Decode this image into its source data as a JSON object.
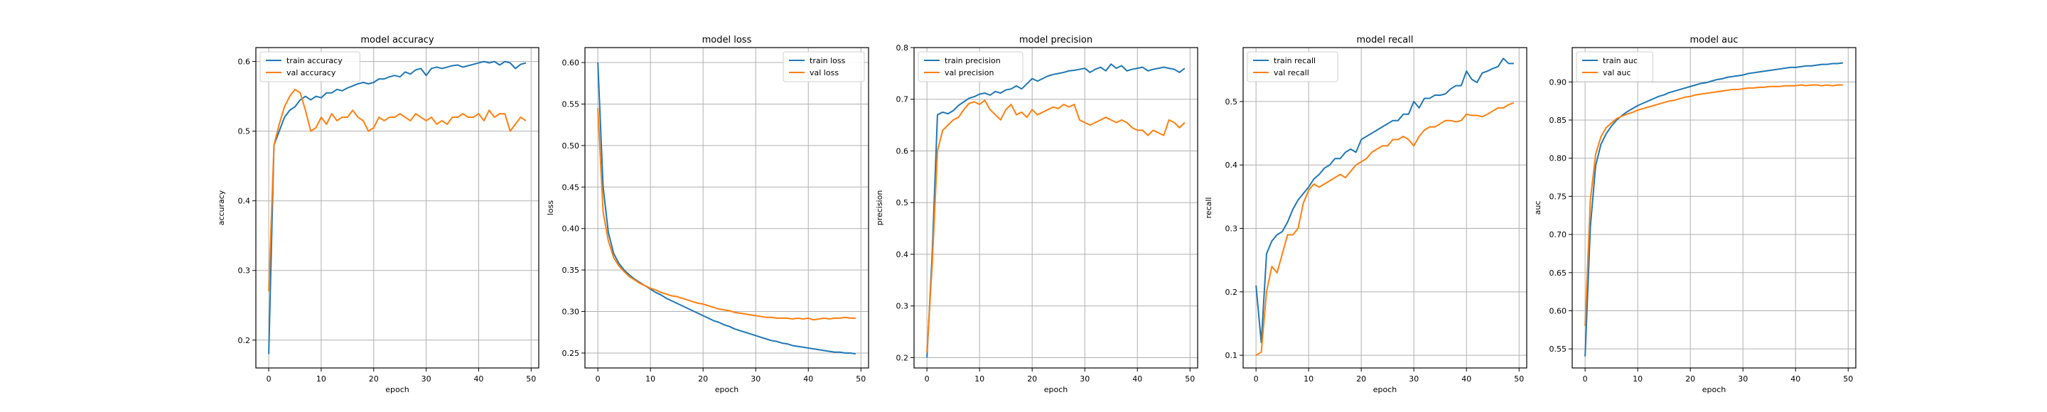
{
  "colors": {
    "train": "#1f77b4",
    "val": "#ff7f0e",
    "grid": "#b0b0b0"
  },
  "chart_data": [
    {
      "type": "line",
      "title": "model accuracy",
      "xlabel": "epoch",
      "ylabel": "accuracy",
      "xlim": [
        -2.45,
        51.45
      ],
      "ylim": [
        0.16,
        0.62
      ],
      "xticks": [
        0,
        10,
        20,
        30,
        40,
        50
      ],
      "yticks": [
        0.2,
        0.3,
        0.4,
        0.5,
        0.6
      ],
      "ytick_labels": [
        "0.2",
        "0.3",
        "0.4",
        "0.5",
        "0.6"
      ],
      "legend": "upper left",
      "grid": true,
      "x": [
        0,
        1,
        2,
        3,
        4,
        5,
        6,
        7,
        8,
        9,
        10,
        11,
        12,
        13,
        14,
        15,
        16,
        17,
        18,
        19,
        20,
        21,
        22,
        23,
        24,
        25,
        26,
        27,
        28,
        29,
        30,
        31,
        32,
        33,
        34,
        35,
        36,
        37,
        38,
        39,
        40,
        41,
        42,
        43,
        44,
        45,
        46,
        47,
        48,
        49
      ],
      "series": [
        {
          "name": "train accuracy",
          "color": "#1f77b4",
          "values": [
            0.18,
            0.48,
            0.5,
            0.52,
            0.53,
            0.535,
            0.545,
            0.55,
            0.545,
            0.55,
            0.548,
            0.555,
            0.555,
            0.56,
            0.558,
            0.562,
            0.565,
            0.568,
            0.57,
            0.568,
            0.57,
            0.575,
            0.575,
            0.578,
            0.58,
            0.578,
            0.585,
            0.582,
            0.588,
            0.59,
            0.58,
            0.59,
            0.592,
            0.59,
            0.592,
            0.594,
            0.595,
            0.592,
            0.594,
            0.596,
            0.598,
            0.6,
            0.598,
            0.6,
            0.595,
            0.6,
            0.598,
            0.59,
            0.596,
            0.598
          ]
        },
        {
          "name": "val accuracy",
          "color": "#ff7f0e",
          "values": [
            0.27,
            0.48,
            0.51,
            0.535,
            0.55,
            0.56,
            0.555,
            0.53,
            0.5,
            0.505,
            0.52,
            0.51,
            0.525,
            0.515,
            0.52,
            0.52,
            0.53,
            0.52,
            0.515,
            0.5,
            0.505,
            0.52,
            0.515,
            0.52,
            0.52,
            0.525,
            0.52,
            0.515,
            0.525,
            0.52,
            0.515,
            0.52,
            0.51,
            0.515,
            0.51,
            0.52,
            0.52,
            0.525,
            0.52,
            0.52,
            0.525,
            0.515,
            0.53,
            0.52,
            0.525,
            0.525,
            0.5,
            0.51,
            0.52,
            0.515
          ]
        }
      ]
    },
    {
      "type": "line",
      "title": "model loss",
      "xlabel": "epoch",
      "ylabel": "loss",
      "xlim": [
        -2.45,
        51.45
      ],
      "ylim": [
        0.232,
        0.618
      ],
      "xticks": [
        0,
        10,
        20,
        30,
        40,
        50
      ],
      "yticks": [
        0.25,
        0.3,
        0.35,
        0.4,
        0.45,
        0.5,
        0.55,
        0.6
      ],
      "ytick_labels": [
        "0.25",
        "0.30",
        "0.35",
        "0.40",
        "0.45",
        "0.50",
        "0.55",
        "0.60"
      ],
      "legend": "upper right",
      "grid": true,
      "x": [
        0,
        1,
        2,
        3,
        4,
        5,
        6,
        7,
        8,
        9,
        10,
        11,
        12,
        13,
        14,
        15,
        16,
        17,
        18,
        19,
        20,
        21,
        22,
        23,
        24,
        25,
        26,
        27,
        28,
        29,
        30,
        31,
        32,
        33,
        34,
        35,
        36,
        37,
        38,
        39,
        40,
        41,
        42,
        43,
        44,
        45,
        46,
        47,
        48,
        49
      ],
      "series": [
        {
          "name": "train loss",
          "color": "#1f77b4",
          "values": [
            0.6,
            0.45,
            0.395,
            0.37,
            0.358,
            0.35,
            0.344,
            0.339,
            0.335,
            0.331,
            0.327,
            0.323,
            0.32,
            0.316,
            0.313,
            0.31,
            0.307,
            0.304,
            0.301,
            0.298,
            0.295,
            0.292,
            0.289,
            0.287,
            0.284,
            0.282,
            0.279,
            0.277,
            0.275,
            0.273,
            0.271,
            0.269,
            0.267,
            0.265,
            0.264,
            0.262,
            0.261,
            0.259,
            0.258,
            0.257,
            0.256,
            0.255,
            0.254,
            0.253,
            0.252,
            0.251,
            0.251,
            0.25,
            0.25,
            0.249
          ]
        },
        {
          "name": "val loss",
          "color": "#ff7f0e",
          "values": [
            0.545,
            0.42,
            0.385,
            0.365,
            0.355,
            0.348,
            0.342,
            0.338,
            0.334,
            0.331,
            0.328,
            0.326,
            0.323,
            0.321,
            0.319,
            0.318,
            0.316,
            0.314,
            0.312,
            0.31,
            0.309,
            0.307,
            0.305,
            0.303,
            0.302,
            0.301,
            0.299,
            0.298,
            0.297,
            0.296,
            0.295,
            0.294,
            0.293,
            0.293,
            0.292,
            0.292,
            0.292,
            0.291,
            0.292,
            0.291,
            0.292,
            0.29,
            0.291,
            0.292,
            0.291,
            0.292,
            0.292,
            0.293,
            0.292,
            0.292
          ]
        }
      ]
    },
    {
      "type": "line",
      "title": "model precision",
      "xlabel": "epoch",
      "ylabel": "precision",
      "xlim": [
        -2.45,
        51.45
      ],
      "ylim": [
        0.18,
        0.8
      ],
      "xticks": [
        0,
        10,
        20,
        30,
        40,
        50
      ],
      "yticks": [
        0.2,
        0.3,
        0.4,
        0.5,
        0.6,
        0.7,
        0.8
      ],
      "ytick_labels": [
        "0.2",
        "0.3",
        "0.4",
        "0.5",
        "0.6",
        "0.7",
        "0.8"
      ],
      "legend": "upper left",
      "grid": true,
      "x": [
        0,
        1,
        2,
        3,
        4,
        5,
        6,
        7,
        8,
        9,
        10,
        11,
        12,
        13,
        14,
        15,
        16,
        17,
        18,
        19,
        20,
        21,
        22,
        23,
        24,
        25,
        26,
        27,
        28,
        29,
        30,
        31,
        32,
        33,
        34,
        35,
        36,
        37,
        38,
        39,
        40,
        41,
        42,
        43,
        44,
        45,
        46,
        47,
        48,
        49
      ],
      "series": [
        {
          "name": "train precision",
          "color": "#1f77b4",
          "values": [
            0.2,
            0.4,
            0.67,
            0.675,
            0.672,
            0.678,
            0.688,
            0.695,
            0.702,
            0.705,
            0.71,
            0.712,
            0.708,
            0.715,
            0.712,
            0.718,
            0.72,
            0.726,
            0.72,
            0.73,
            0.74,
            0.735,
            0.74,
            0.745,
            0.748,
            0.75,
            0.752,
            0.755,
            0.756,
            0.758,
            0.76,
            0.752,
            0.758,
            0.762,
            0.755,
            0.768,
            0.76,
            0.765,
            0.755,
            0.758,
            0.76,
            0.762,
            0.755,
            0.758,
            0.76,
            0.762,
            0.76,
            0.758,
            0.752,
            0.76
          ]
        },
        {
          "name": "val precision",
          "color": "#ff7f0e",
          "values": [
            0.21,
            0.38,
            0.6,
            0.64,
            0.65,
            0.66,
            0.665,
            0.68,
            0.692,
            0.695,
            0.69,
            0.698,
            0.68,
            0.67,
            0.66,
            0.68,
            0.69,
            0.67,
            0.675,
            0.665,
            0.68,
            0.67,
            0.675,
            0.68,
            0.685,
            0.682,
            0.69,
            0.685,
            0.69,
            0.66,
            0.655,
            0.65,
            0.655,
            0.66,
            0.665,
            0.66,
            0.655,
            0.66,
            0.655,
            0.645,
            0.64,
            0.64,
            0.63,
            0.64,
            0.635,
            0.63,
            0.66,
            0.655,
            0.645,
            0.655
          ]
        }
      ]
    },
    {
      "type": "line",
      "title": "model recall",
      "xlabel": "epoch",
      "ylabel": "recall",
      "xlim": [
        -2.45,
        51.45
      ],
      "ylim": [
        0.08,
        0.585
      ],
      "xticks": [
        0,
        10,
        20,
        30,
        40,
        50
      ],
      "yticks": [
        0.1,
        0.2,
        0.3,
        0.4,
        0.5
      ],
      "ytick_labels": [
        "0.1",
        "0.2",
        "0.3",
        "0.4",
        "0.5"
      ],
      "legend": "upper left",
      "grid": true,
      "x": [
        0,
        1,
        2,
        3,
        4,
        5,
        6,
        7,
        8,
        9,
        10,
        11,
        12,
        13,
        14,
        15,
        16,
        17,
        18,
        19,
        20,
        21,
        22,
        23,
        24,
        25,
        26,
        27,
        28,
        29,
        30,
        31,
        32,
        33,
        34,
        35,
        36,
        37,
        38,
        39,
        40,
        41,
        42,
        43,
        44,
        45,
        46,
        47,
        48,
        49
      ],
      "series": [
        {
          "name": "train recall",
          "color": "#1f77b4",
          "values": [
            0.21,
            0.12,
            0.26,
            0.28,
            0.29,
            0.295,
            0.31,
            0.33,
            0.345,
            0.355,
            0.365,
            0.378,
            0.385,
            0.395,
            0.4,
            0.41,
            0.41,
            0.42,
            0.425,
            0.42,
            0.44,
            0.445,
            0.45,
            0.455,
            0.46,
            0.465,
            0.47,
            0.47,
            0.48,
            0.48,
            0.5,
            0.49,
            0.505,
            0.505,
            0.51,
            0.51,
            0.512,
            0.52,
            0.525,
            0.525,
            0.548,
            0.535,
            0.53,
            0.545,
            0.548,
            0.552,
            0.555,
            0.568,
            0.56,
            0.56
          ]
        },
        {
          "name": "val recall",
          "color": "#ff7f0e",
          "values": [
            0.1,
            0.105,
            0.2,
            0.24,
            0.23,
            0.26,
            0.29,
            0.29,
            0.3,
            0.34,
            0.36,
            0.37,
            0.365,
            0.37,
            0.375,
            0.38,
            0.385,
            0.38,
            0.39,
            0.4,
            0.405,
            0.41,
            0.42,
            0.425,
            0.43,
            0.43,
            0.44,
            0.44,
            0.445,
            0.44,
            0.43,
            0.445,
            0.455,
            0.46,
            0.46,
            0.465,
            0.47,
            0.47,
            0.468,
            0.47,
            0.48,
            0.478,
            0.478,
            0.476,
            0.48,
            0.485,
            0.49,
            0.49,
            0.495,
            0.498
          ]
        }
      ]
    },
    {
      "type": "line",
      "title": "model auc",
      "xlabel": "epoch",
      "ylabel": "auc",
      "xlim": [
        -2.45,
        51.45
      ],
      "ylim": [
        0.525,
        0.945
      ],
      "xticks": [
        0,
        10,
        20,
        30,
        40,
        50
      ],
      "yticks": [
        0.55,
        0.6,
        0.65,
        0.7,
        0.75,
        0.8,
        0.85,
        0.9
      ],
      "ytick_labels": [
        "0.55",
        "0.60",
        "0.65",
        "0.70",
        "0.75",
        "0.80",
        "0.85",
        "0.90"
      ],
      "legend": "upper left",
      "grid": true,
      "x": [
        0,
        1,
        2,
        3,
        4,
        5,
        6,
        7,
        8,
        9,
        10,
        11,
        12,
        13,
        14,
        15,
        16,
        17,
        18,
        19,
        20,
        21,
        22,
        23,
        24,
        25,
        26,
        27,
        28,
        29,
        30,
        31,
        32,
        33,
        34,
        35,
        36,
        37,
        38,
        39,
        40,
        41,
        42,
        43,
        44,
        45,
        46,
        47,
        48,
        49
      ],
      "series": [
        {
          "name": "train auc",
          "color": "#1f77b4",
          "values": [
            0.54,
            0.71,
            0.79,
            0.818,
            0.832,
            0.842,
            0.85,
            0.856,
            0.861,
            0.865,
            0.869,
            0.872,
            0.875,
            0.878,
            0.881,
            0.883,
            0.886,
            0.888,
            0.89,
            0.892,
            0.894,
            0.896,
            0.898,
            0.899,
            0.901,
            0.903,
            0.904,
            0.906,
            0.907,
            0.908,
            0.909,
            0.911,
            0.912,
            0.913,
            0.914,
            0.915,
            0.916,
            0.917,
            0.918,
            0.919,
            0.919,
            0.92,
            0.921,
            0.921,
            0.922,
            0.923,
            0.923,
            0.924,
            0.924,
            0.925
          ]
        },
        {
          "name": "val auc",
          "color": "#ff7f0e",
          "values": [
            0.58,
            0.745,
            0.805,
            0.828,
            0.84,
            0.846,
            0.852,
            0.855,
            0.858,
            0.86,
            0.863,
            0.865,
            0.867,
            0.869,
            0.871,
            0.873,
            0.875,
            0.876,
            0.878,
            0.88,
            0.881,
            0.883,
            0.884,
            0.885,
            0.886,
            0.887,
            0.888,
            0.889,
            0.89,
            0.89,
            0.891,
            0.892,
            0.892,
            0.893,
            0.893,
            0.894,
            0.894,
            0.894,
            0.895,
            0.895,
            0.895,
            0.896,
            0.895,
            0.896,
            0.896,
            0.895,
            0.896,
            0.895,
            0.896,
            0.896
          ]
        }
      ]
    }
  ]
}
